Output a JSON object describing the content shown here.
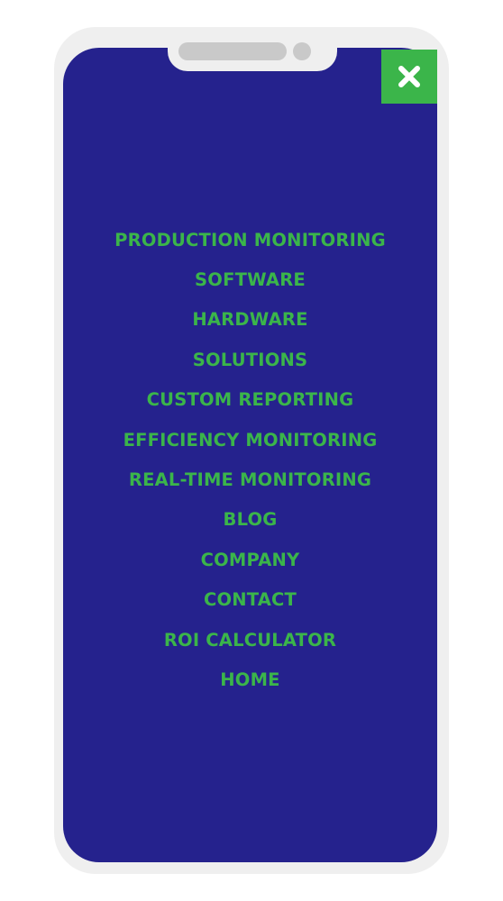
{
  "colors": {
    "screen_background": "#25228d",
    "menu_text": "#3bb54a",
    "close_button_background": "#3bb54a",
    "close_icon": "#ffffff",
    "device_frame": "#efefef"
  },
  "close_button": {
    "icon": "close-icon"
  },
  "menu": {
    "items": [
      {
        "label": "PRODUCTION MONITORING"
      },
      {
        "label": "SOFTWARE"
      },
      {
        "label": "HARDWARE"
      },
      {
        "label": "SOLUTIONS"
      },
      {
        "label": "CUSTOM REPORTING"
      },
      {
        "label": "EFFICIENCY MONITORING"
      },
      {
        "label": "REAL-TIME MONITORING"
      },
      {
        "label": "BLOG"
      },
      {
        "label": "COMPANY"
      },
      {
        "label": "CONTACT"
      },
      {
        "label": "ROI CALCULATOR"
      },
      {
        "label": "HOME"
      }
    ]
  }
}
